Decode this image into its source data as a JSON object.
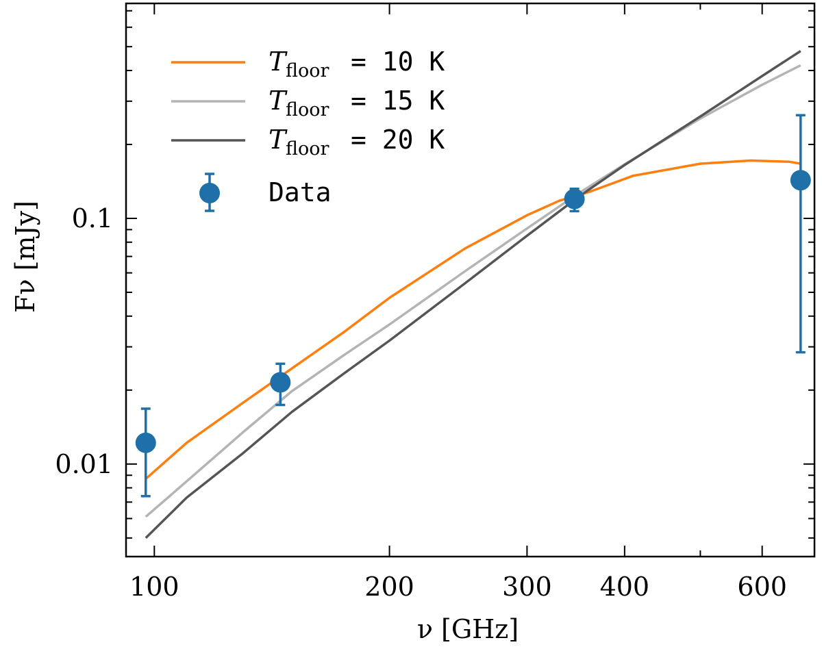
{
  "chart_data": {
    "type": "line",
    "xscale": "log",
    "yscale": "log",
    "xlim": [
      92,
      700
    ],
    "ylim": [
      0.0042,
      0.75
    ],
    "xlabel": "ν [GHz]",
    "ylabel": "Fν [mJy]",
    "x_ticks": [
      100,
      200,
      300,
      400,
      600
    ],
    "x_tick_labels": [
      "100",
      "200",
      "300",
      "400",
      "600"
    ],
    "y_ticks": [
      0.01,
      0.1
    ],
    "y_tick_labels": [
      "0.01",
      "0.1"
    ],
    "legend_position": "upper-left",
    "series": [
      {
        "name": "T_floor = 10 K",
        "legend_var": "T",
        "legend_sub": "floor",
        "legend_value": "= 10 K",
        "color": "#ff7f0e",
        "x": [
          97.5,
          110,
          130,
          150,
          175,
          200,
          250,
          300,
          330,
          360,
          410,
          500,
          580,
          650,
          672
        ],
        "y": [
          0.0087,
          0.0122,
          0.0178,
          0.0245,
          0.0345,
          0.0475,
          0.0755,
          0.103,
          0.118,
          0.128,
          0.149,
          0.167,
          0.172,
          0.17,
          0.167
        ]
      },
      {
        "name": "T_floor = 15 K",
        "legend_var": "T",
        "legend_sub": "floor",
        "legend_value": "= 15 K",
        "color": "#b4b4b4",
        "x": [
          97.5,
          110,
          130,
          150,
          175,
          200,
          250,
          300,
          350,
          400,
          500,
          600,
          672
        ],
        "y": [
          0.0061,
          0.0085,
          0.0135,
          0.0198,
          0.0278,
          0.037,
          0.061,
          0.091,
          0.127,
          0.166,
          0.255,
          0.35,
          0.42
        ]
      },
      {
        "name": "T_floor = 20 K",
        "legend_var": "T",
        "legend_sub": "floor",
        "legend_value": "= 20 K",
        "color": "#555555",
        "x": [
          97.5,
          110,
          130,
          150,
          175,
          200,
          250,
          300,
          350,
          400,
          500,
          600,
          672
        ],
        "y": [
          0.005,
          0.0073,
          0.0111,
          0.0163,
          0.0234,
          0.0318,
          0.0545,
          0.085,
          0.123,
          0.165,
          0.26,
          0.38,
          0.48
        ]
      }
    ],
    "data_points": {
      "name": "Data",
      "color": "#1f6fa8",
      "points": [
        {
          "x": 97.5,
          "y": 0.0122,
          "err_low": 0.0074,
          "err_high": 0.0168
        },
        {
          "x": 145,
          "y": 0.0215,
          "err_low": 0.0174,
          "err_high": 0.0256
        },
        {
          "x": 345,
          "y": 0.12,
          "err_low": 0.107,
          "err_high": 0.132
        },
        {
          "x": 672,
          "y": 0.143,
          "err_low": 0.0285,
          "err_high": 0.263
        }
      ]
    }
  }
}
